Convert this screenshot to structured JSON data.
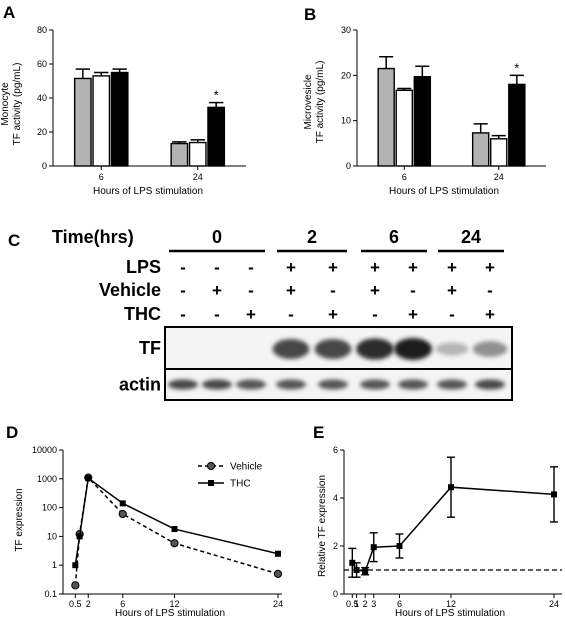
{
  "panels": {
    "A": {
      "letter": "A",
      "chart_data": {
        "type": "bar",
        "categories": [
          "6",
          "24"
        ],
        "series": [
          {
            "values": [
              51.5,
              13.2
            ],
            "errors": [
              5.5,
              1.0
            ],
            "color": "#b3b3b3"
          },
          {
            "values": [
              53.0,
              13.8
            ],
            "errors": [
              2.0,
              1.6
            ],
            "color": "#ffffff"
          },
          {
            "values": [
              55.0,
              34.5
            ],
            "errors": [
              2.0,
              2.8
            ],
            "color": "#000000"
          }
        ],
        "ylim": [
          0,
          80
        ],
        "yticks": [
          "0",
          "20",
          "40",
          "60",
          "80"
        ],
        "ylabel_line1": "Monocyte",
        "ylabel_line2": "TF activity (pg/mL)",
        "xlabel": "Hours of LPS stimulation",
        "annotation": "*"
      }
    },
    "B": {
      "letter": "B",
      "chart_data": {
        "type": "bar",
        "categories": [
          "6",
          "24"
        ],
        "series": [
          {
            "values": [
              21.5,
              7.3
            ],
            "errors": [
              2.6,
              2.0
            ],
            "color": "#b3b3b3"
          },
          {
            "values": [
              16.7,
              6.0
            ],
            "errors": [
              0.4,
              0.7
            ],
            "color": "#ffffff"
          },
          {
            "values": [
              19.7,
              18.0
            ],
            "errors": [
              2.3,
              2.0
            ],
            "color": "#000000"
          }
        ],
        "ylim": [
          0,
          30
        ],
        "yticks": [
          "0",
          "10",
          "20",
          "30"
        ],
        "ylabel_line1": "Microvesicle",
        "ylabel_line2": "TF activity (pg/mL)",
        "xlabel": "Hours of LPS stimulation",
        "annotation": "*"
      }
    },
    "C": {
      "letter": "C",
      "time_label": "Time(hrs)",
      "time_groups": [
        "0",
        "2",
        "6",
        "24"
      ],
      "rows": [
        {
          "label": "LPS",
          "signs": [
            "-",
            "-",
            "-",
            "+",
            "+",
            "+",
            "+",
            "+",
            "+"
          ]
        },
        {
          "label": "Vehicle",
          "signs": [
            "-",
            "+",
            "-",
            "+",
            "-",
            "+",
            "-",
            "+",
            "-"
          ]
        },
        {
          "label": "THC",
          "signs": [
            "-",
            "-",
            "+",
            "-",
            "+",
            "-",
            "+",
            "-",
            "+"
          ]
        }
      ],
      "blots": [
        {
          "label": "TF",
          "intensity": [
            0,
            0,
            0,
            0.85,
            0.85,
            0.95,
            1.0,
            0.35,
            0.55
          ]
        },
        {
          "label": "actin",
          "intensity": [
            0.85,
            0.85,
            0.8,
            0.8,
            0.8,
            0.8,
            0.8,
            0.8,
            0.85
          ]
        }
      ]
    },
    "D": {
      "letter": "D",
      "chart_data": {
        "type": "line",
        "scale": "log",
        "x": [
          0.5,
          1,
          2,
          6,
          12,
          24
        ],
        "series": [
          {
            "name": "Vehicle",
            "marker": "circle",
            "dash": true,
            "values": [
              0.2,
              12,
              1100,
              60,
              5.8,
              0.5
            ]
          },
          {
            "name": "THC",
            "marker": "square",
            "dash": false,
            "values": [
              1.0,
              10,
              1050,
              140,
              18,
              2.5
            ]
          }
        ],
        "ylim": [
          0.1,
          10000
        ],
        "yticks": [
          "0.1",
          "1",
          "10",
          "100",
          "1000",
          "10000"
        ],
        "xticks": [
          "0.5",
          "2",
          "6",
          "12",
          "24"
        ],
        "xlim": [
          0,
          24
        ],
        "ylabel": "TF expression",
        "xlabel": "Hours of LPS stimulation"
      }
    },
    "E": {
      "letter": "E",
      "chart_data": {
        "type": "line",
        "x": [
          0.5,
          1,
          2,
          3,
          6,
          12,
          24
        ],
        "values": [
          1.3,
          1.0,
          0.95,
          1.95,
          2.0,
          4.45,
          4.15
        ],
        "errors": [
          0.6,
          0.3,
          0.15,
          0.6,
          0.5,
          1.25,
          1.15
        ],
        "baseline": 1,
        "ylim": [
          0,
          6
        ],
        "yticks": [
          "0",
          "2",
          "4",
          "6"
        ],
        "xticks": [
          "0.5",
          "1",
          "2",
          "3",
          "6",
          "12",
          "24"
        ],
        "xlim": [
          0,
          24
        ],
        "ylabel": "Relative TF expression",
        "xlabel": "Hours of LPS stimulation"
      }
    }
  }
}
